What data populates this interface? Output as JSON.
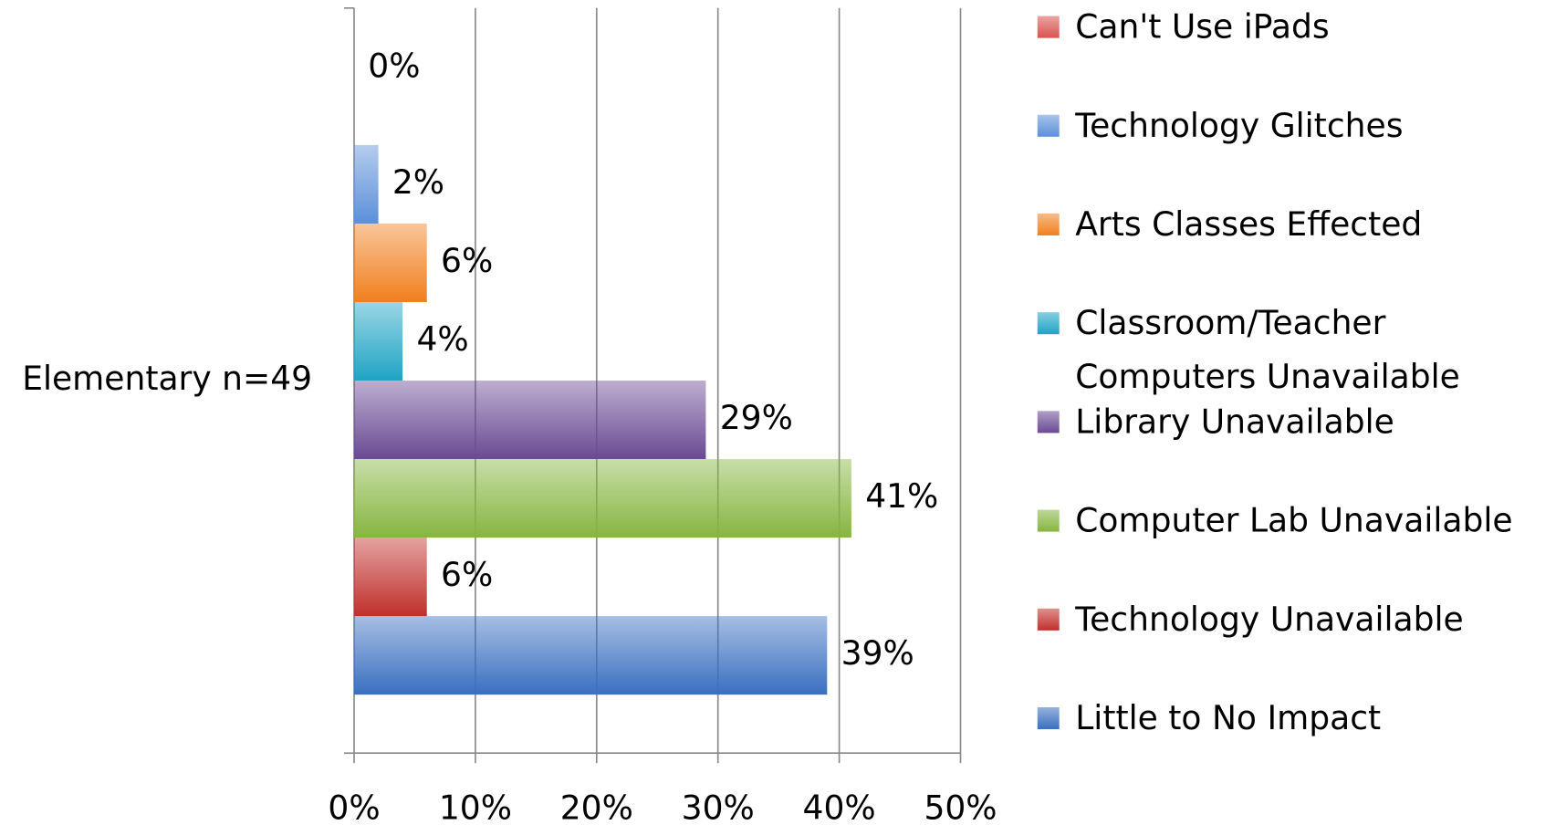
{
  "chart_data": {
    "type": "bar",
    "orientation": "horizontal",
    "categories": [
      "Elementary n=49"
    ],
    "series": [
      {
        "name": "Can't Use iPads",
        "color": "#d9534f",
        "values": [
          0
        ],
        "value_labels": [
          "0%"
        ]
      },
      {
        "name": "Technology Glitches",
        "color": "#5b8fd9",
        "values": [
          2
        ],
        "value_labels": [
          "2%"
        ]
      },
      {
        "name": "Arts Classes Effected",
        "color": "#f07f1e",
        "values": [
          6
        ],
        "value_labels": [
          "6%"
        ]
      },
      {
        "name": "Classroom/Teacher Computers Unavailable",
        "color": "#1fa3c4",
        "values": [
          4
        ],
        "value_labels": [
          "4%"
        ]
      },
      {
        "name": "Library Unavailable",
        "color": "#6a4a94",
        "values": [
          29
        ],
        "value_labels": [
          "29%"
        ]
      },
      {
        "name": "Computer Lab Unavailable",
        "color": "#86b540",
        "values": [
          41
        ],
        "value_labels": [
          "41%"
        ]
      },
      {
        "name": "Technology Unavailable",
        "color": "#c0302c",
        "values": [
          6
        ],
        "value_labels": [
          "6%"
        ]
      },
      {
        "name": "Little to No Impact",
        "color": "#3a6fc0",
        "values": [
          39
        ],
        "value_labels": [
          "39%"
        ]
      }
    ],
    "xlim": [
      0,
      50
    ],
    "xticks": [
      {
        "value": 0,
        "label": "0%"
      },
      {
        "value": 10,
        "label": "10%"
      },
      {
        "value": 20,
        "label": "20%"
      },
      {
        "value": 30,
        "label": "30%"
      },
      {
        "value": 40,
        "label": "40%"
      },
      {
        "value": 50,
        "label": "50%"
      }
    ],
    "grid": true,
    "legend": "right"
  }
}
